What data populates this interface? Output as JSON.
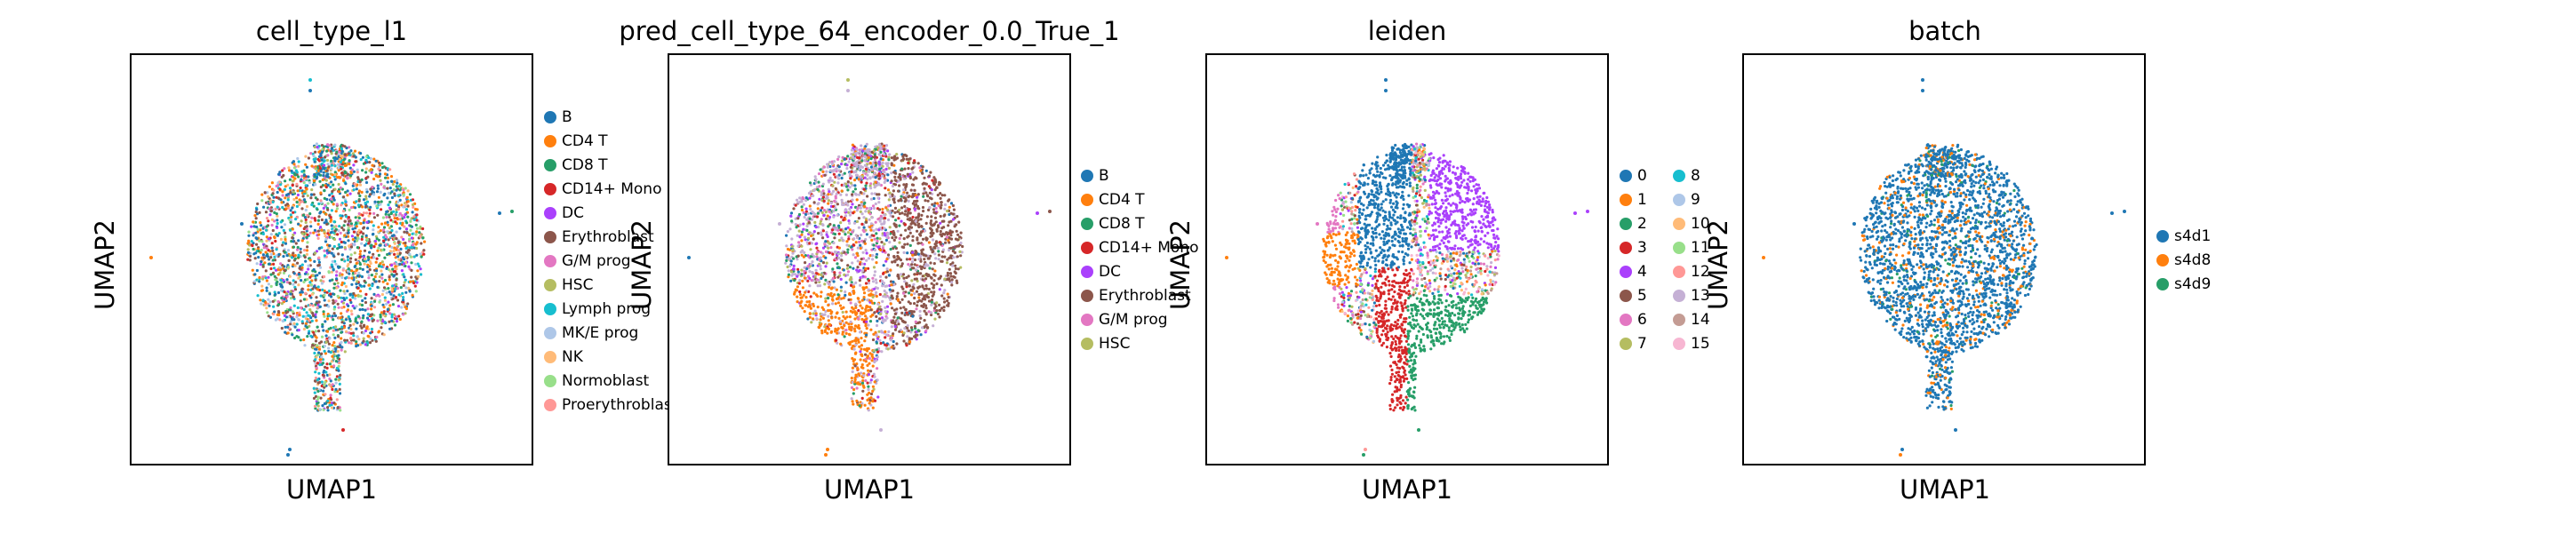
{
  "colors": [
    "#1f77b4",
    "#ff7f0e",
    "#279e68",
    "#d62728",
    "#aa40fc",
    "#8c564b",
    "#e377c2",
    "#b5bd61",
    "#17becf",
    "#aec7e8",
    "#ffbb78",
    "#98df8a",
    "#ff9896",
    "#c5b0d5",
    "#c49c94",
    "#f7b6d2"
  ],
  "chart_data": [
    {
      "type": "scatter",
      "title": "cell_type_l1",
      "xlabel": "UMAP1",
      "ylabel": "UMAP2",
      "legend": [
        "B",
        "CD4 T",
        "CD8 T",
        "CD14+ Mono",
        "DC",
        "Erythroblast",
        "G/M prog",
        "HSC",
        "Lymph prog",
        "MK/E prog",
        "NK",
        "Normoblast",
        "Proerythroblast"
      ],
      "legend_colors": [
        "#1f77b4",
        "#ff7f0e",
        "#279e68",
        "#d62728",
        "#aa40fc",
        "#8c564b",
        "#e377c2",
        "#b5bd61",
        "#17becf",
        "#aec7e8",
        "#ffbb78",
        "#98df8a",
        "#ff9896"
      ],
      "legend_placement": "right"
    },
    {
      "type": "scatter",
      "title": "pred_cell_type_64_encoder_0.0_True_1",
      "xlabel": "UMAP1",
      "ylabel": "UMAP2",
      "legend": [
        "B",
        "CD4 T",
        "CD8 T",
        "CD14+ Mono",
        "DC",
        "Erythroblast",
        "G/M prog",
        "HSC"
      ],
      "legend_colors": [
        "#1f77b4",
        "#ff7f0e",
        "#279e68",
        "#d62728",
        "#aa40fc",
        "#8c564b",
        "#e377c2",
        "#b5bd61"
      ],
      "legend_placement": "right"
    },
    {
      "type": "scatter",
      "title": "leiden",
      "xlabel": "UMAP1",
      "ylabel": "UMAP2",
      "legend": [
        "0",
        "1",
        "2",
        "3",
        "4",
        "5",
        "6",
        "7",
        "8",
        "9",
        "10",
        "11",
        "12",
        "13",
        "14",
        "15"
      ],
      "legend_colors": [
        "#1f77b4",
        "#ff7f0e",
        "#279e68",
        "#d62728",
        "#aa40fc",
        "#8c564b",
        "#e377c2",
        "#b5bd61",
        "#17becf",
        "#aec7e8",
        "#ffbb78",
        "#98df8a",
        "#ff9896",
        "#c5b0d5",
        "#c49c94",
        "#f7b6d2"
      ],
      "legend_placement": "right"
    },
    {
      "type": "scatter",
      "title": "batch",
      "xlabel": "UMAP1",
      "ylabel": "UMAP2",
      "legend": [
        "s4d1",
        "s4d8",
        "s4d9"
      ],
      "legend_colors": [
        "#1f77b4",
        "#ff7f0e",
        "#279e68"
      ],
      "legend_placement": "right"
    }
  ]
}
